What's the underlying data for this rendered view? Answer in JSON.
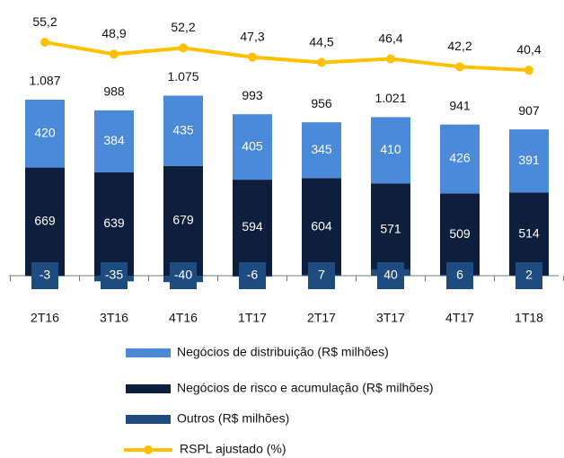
{
  "chart_data": {
    "type": "bar",
    "categories": [
      "2T16",
      "3T16",
      "4T16",
      "1T17",
      "2T17",
      "3T17",
      "4T17",
      "1T18"
    ],
    "series": [
      {
        "name": "Negócios de distribuição (R$ milhões)",
        "color": "#4a8ad8",
        "values": [
          420,
          384,
          435,
          405,
          345,
          410,
          426,
          391
        ]
      },
      {
        "name": "Negócios de risco e acumulação (R$ milhões)",
        "color": "#0e1f3d",
        "values": [
          669,
          639,
          679,
          594,
          604,
          571,
          509,
          514
        ]
      },
      {
        "name": "Outros (R$ milhões)",
        "color": "#1f4c80",
        "values": [
          -3,
          -35,
          -40,
          -6,
          7,
          40,
          6,
          2
        ]
      }
    ],
    "totals": {
      "values": [
        1087,
        988,
        1075,
        993,
        956,
        1021,
        941,
        907
      ],
      "value_labels": [
        "1.087",
        "988",
        "1.075",
        "993",
        "956",
        "1.021",
        "941",
        "907"
      ]
    },
    "line": {
      "name": "RSPL ajustado (%)",
      "color": "#ffc000",
      "values": [
        55.2,
        48.9,
        52.2,
        47.3,
        44.5,
        46.4,
        42.2,
        40.4
      ],
      "value_labels": [
        "55,2",
        "48,9",
        "52,2",
        "47,3",
        "44,5",
        "46,4",
        "42,2",
        "40,4"
      ]
    }
  }
}
